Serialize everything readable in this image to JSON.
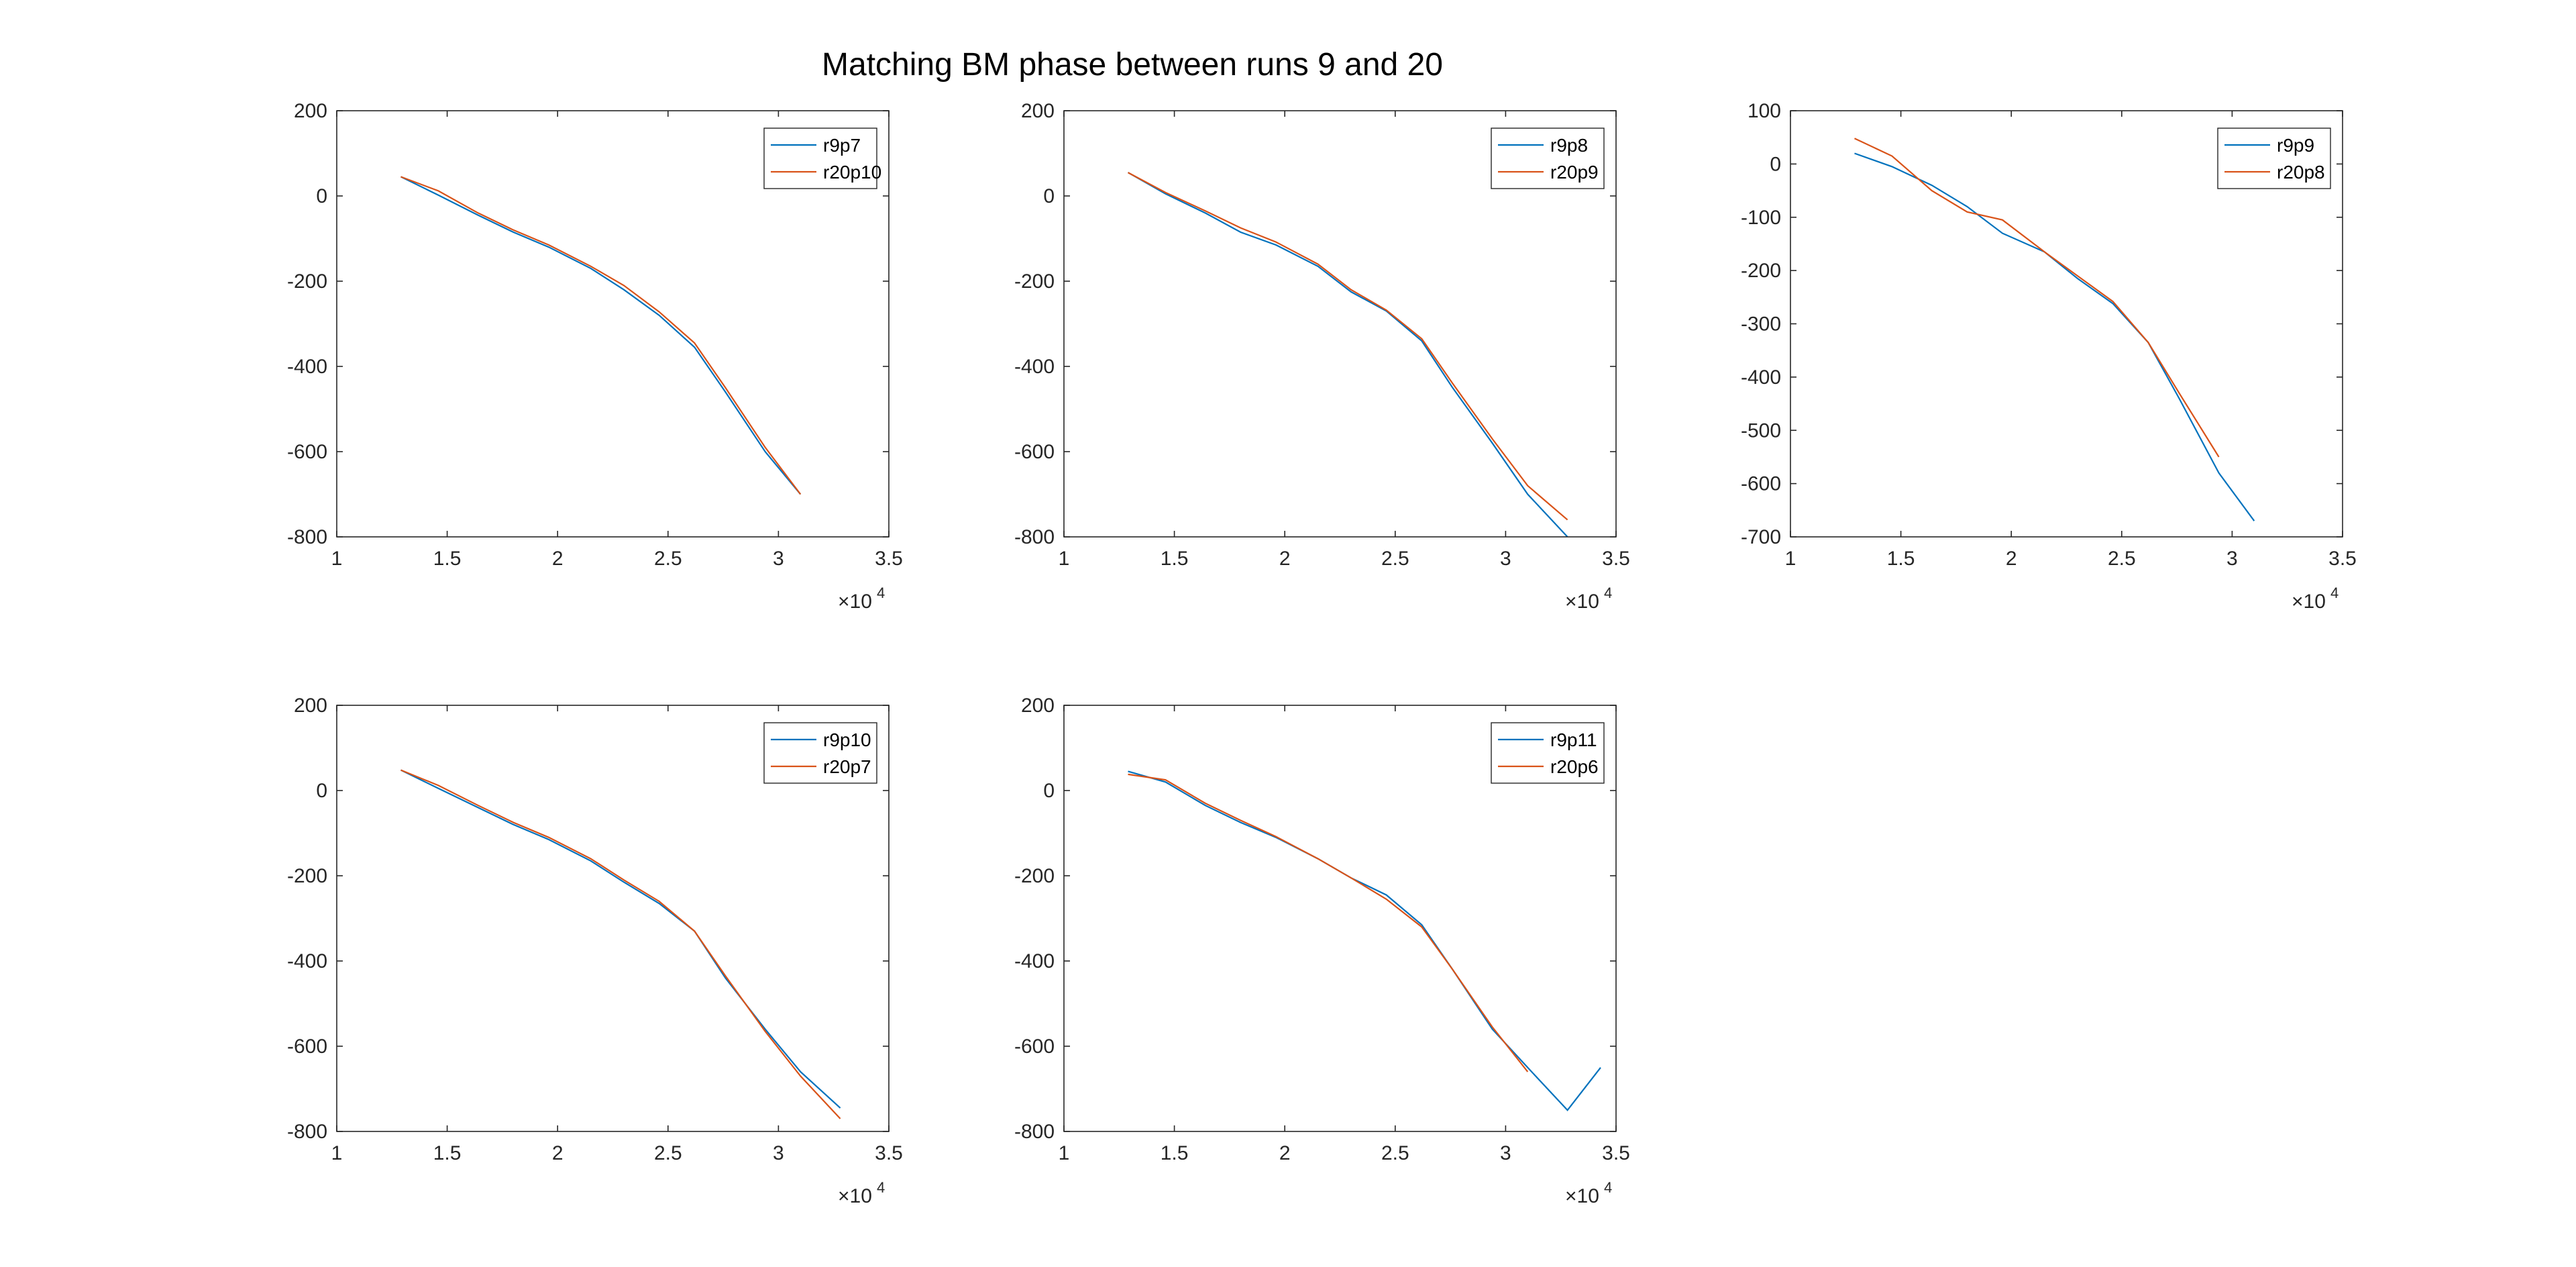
{
  "figure": {
    "title": "Matching BM phase between runs 9 and 20"
  },
  "colors": {
    "series1": "#0072BD",
    "series2": "#D95319",
    "axis": "#262626",
    "legend_edge": "#262626"
  },
  "chart_data": [
    {
      "type": "line",
      "xlim": [
        10000,
        35000
      ],
      "ylim": [
        -800,
        200
      ],
      "xticks": [
        10000,
        15000,
        20000,
        25000,
        30000,
        35000
      ],
      "xticklabels": [
        "1",
        "1.5",
        "2",
        "2.5",
        "3",
        "3.5"
      ],
      "yticks": [
        -800,
        -600,
        -400,
        -200,
        0,
        200
      ],
      "yticklabels": [
        "-800",
        "-600",
        "-400",
        "-200",
        "0",
        "200"
      ],
      "x_exponent_label": "×10",
      "x_exponent_power": "4",
      "legend_placement": "top-right",
      "series": [
        {
          "name": "r9p7",
          "x": [
            12900,
            14600,
            16400,
            18000,
            19600,
            21500,
            23000,
            24600,
            26200,
            27600,
            29400,
            31000
          ],
          "y": [
            45,
            2,
            -45,
            -85,
            -120,
            -170,
            -220,
            -280,
            -355,
            -460,
            -600,
            -700
          ]
        },
        {
          "name": "r20p10",
          "x": [
            12900,
            14600,
            16400,
            18000,
            19600,
            21500,
            23000,
            24600,
            26200,
            27600,
            29400,
            31000
          ],
          "y": [
            45,
            12,
            -40,
            -80,
            -115,
            -165,
            -210,
            -272,
            -345,
            -450,
            -590,
            -700
          ]
        }
      ]
    },
    {
      "type": "line",
      "xlim": [
        10000,
        35000
      ],
      "ylim": [
        -800,
        200
      ],
      "xticks": [
        10000,
        15000,
        20000,
        25000,
        30000,
        35000
      ],
      "xticklabels": [
        "1",
        "1.5",
        "2",
        "2.5",
        "3",
        "3.5"
      ],
      "yticks": [
        -800,
        -600,
        -400,
        -200,
        0,
        200
      ],
      "yticklabels": [
        "-800",
        "-600",
        "-400",
        "-200",
        "0",
        "200"
      ],
      "x_exponent_label": "×10",
      "x_exponent_power": "4",
      "legend_placement": "top-right",
      "series": [
        {
          "name": "r9p8",
          "x": [
            12900,
            14600,
            16400,
            18000,
            19600,
            21500,
            23000,
            24600,
            26200,
            27600,
            29400,
            31000,
            32800
          ],
          "y": [
            55,
            5,
            -40,
            -85,
            -115,
            -165,
            -225,
            -270,
            -340,
            -450,
            -580,
            -700,
            -800
          ]
        },
        {
          "name": "r20p9",
          "x": [
            12900,
            14600,
            16400,
            18000,
            19600,
            21500,
            23000,
            24600,
            26200,
            27600,
            29400,
            31000,
            32800
          ],
          "y": [
            55,
            8,
            -35,
            -75,
            -108,
            -160,
            -220,
            -268,
            -335,
            -440,
            -570,
            -680,
            -760
          ]
        }
      ]
    },
    {
      "type": "line",
      "xlim": [
        10000,
        35000
      ],
      "ylim": [
        -700,
        100
      ],
      "xticks": [
        10000,
        15000,
        20000,
        25000,
        30000,
        35000
      ],
      "xticklabels": [
        "1",
        "1.5",
        "2",
        "2.5",
        "3",
        "3.5"
      ],
      "yticks": [
        -700,
        -600,
        -500,
        -400,
        -300,
        -200,
        -100,
        0,
        100
      ],
      "yticklabels": [
        "-700",
        "-600",
        "-500",
        "-400",
        "-300",
        "-200",
        "-100",
        "0",
        "100"
      ],
      "x_exponent_label": "×10",
      "x_exponent_power": "4",
      "legend_placement": "top-right",
      "series": [
        {
          "name": "r9p9",
          "x": [
            12900,
            14600,
            16400,
            18000,
            19600,
            21500,
            23000,
            24600,
            26200,
            27600,
            29400,
            31000
          ],
          "y": [
            20,
            -5,
            -40,
            -80,
            -130,
            -165,
            -215,
            -262,
            -335,
            -440,
            -580,
            -670
          ]
        },
        {
          "name": "r20p8",
          "x": [
            12900,
            14600,
            16400,
            18000,
            19600,
            21500,
            23000,
            24600,
            26200,
            27600,
            29400
          ],
          "y": [
            48,
            15,
            -50,
            -90,
            -105,
            -165,
            -210,
            -258,
            -335,
            -430,
            -550
          ]
        }
      ]
    },
    {
      "type": "line",
      "xlim": [
        10000,
        35000
      ],
      "ylim": [
        -800,
        200
      ],
      "xticks": [
        10000,
        15000,
        20000,
        25000,
        30000,
        35000
      ],
      "xticklabels": [
        "1",
        "1.5",
        "2",
        "2.5",
        "3",
        "3.5"
      ],
      "yticks": [
        -800,
        -600,
        -400,
        -200,
        0,
        200
      ],
      "yticklabels": [
        "-800",
        "-600",
        "-400",
        "-200",
        "0",
        "200"
      ],
      "x_exponent_label": "×10",
      "x_exponent_power": "4",
      "legend_placement": "top-right",
      "series": [
        {
          "name": "r9p10",
          "x": [
            12900,
            14600,
            16400,
            18000,
            19600,
            21500,
            23000,
            24600,
            26200,
            27600,
            29400,
            31000,
            32800
          ],
          "y": [
            48,
            5,
            -40,
            -80,
            -115,
            -165,
            -215,
            -265,
            -330,
            -440,
            -560,
            -660,
            -745
          ]
        },
        {
          "name": "r20p7",
          "x": [
            12900,
            14600,
            16400,
            18000,
            19600,
            21500,
            23000,
            24600,
            26200,
            27600,
            29400,
            31000,
            32800
          ],
          "y": [
            48,
            12,
            -35,
            -75,
            -110,
            -160,
            -210,
            -260,
            -330,
            -435,
            -565,
            -670,
            -770
          ]
        }
      ]
    },
    {
      "type": "line",
      "xlim": [
        10000,
        35000
      ],
      "ylim": [
        -800,
        200
      ],
      "xticks": [
        10000,
        15000,
        20000,
        25000,
        30000,
        35000
      ],
      "xticklabels": [
        "1",
        "1.5",
        "2",
        "2.5",
        "3",
        "3.5"
      ],
      "yticks": [
        -800,
        -600,
        -400,
        -200,
        0,
        200
      ],
      "yticklabels": [
        "-800",
        "-600",
        "-400",
        "-200",
        "0",
        "200"
      ],
      "x_exponent_label": "×10",
      "x_exponent_power": "4",
      "legend_placement": "top-right",
      "series": [
        {
          "name": "r9p11",
          "x": [
            12900,
            14600,
            16400,
            18000,
            19600,
            21500,
            23000,
            24600,
            26200,
            27600,
            29400,
            31000,
            32800,
            34300
          ],
          "y": [
            45,
            20,
            -35,
            -75,
            -110,
            -160,
            -205,
            -245,
            -315,
            -420,
            -560,
            -650,
            -750,
            -650
          ]
        },
        {
          "name": "r20p6",
          "x": [
            12900,
            14600,
            16400,
            18000,
            19600,
            21500,
            23000,
            24600,
            26200,
            27600,
            29400,
            31000
          ],
          "y": [
            38,
            25,
            -30,
            -70,
            -108,
            -160,
            -205,
            -255,
            -320,
            -420,
            -555,
            -660
          ]
        }
      ]
    }
  ]
}
